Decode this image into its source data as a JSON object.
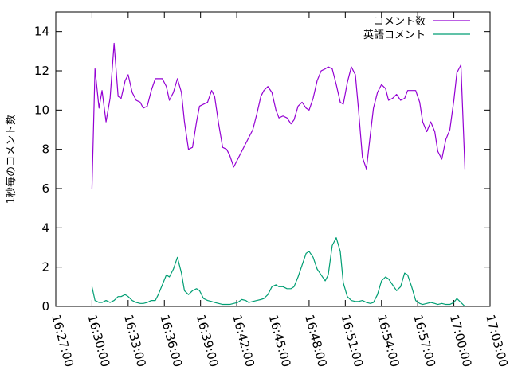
{
  "chart_data": {
    "type": "line",
    "title": "",
    "xlabel": "",
    "ylabel": "1秒毎のコメント数",
    "xlim": [
      "16:27:00",
      "17:03:00"
    ],
    "ylim": [
      0,
      15
    ],
    "x_ticks": [
      "16:27:00",
      "16:30:00",
      "16:33:00",
      "16:36:00",
      "16:39:00",
      "16:42:00",
      "16:45:00",
      "16:48:00",
      "16:51:00",
      "16:54:00",
      "16:57:00",
      "17:00:00",
      "17:03:00"
    ],
    "y_ticks": [
      0,
      2,
      4,
      6,
      8,
      10,
      12,
      14
    ],
    "grid": false,
    "legend_position": "top-right",
    "series": [
      {
        "name": "コメント数",
        "color": "#9400d3",
        "points": [
          [
            "16:30:00",
            6.0
          ],
          [
            "16:30:15",
            12.1
          ],
          [
            "16:30:35",
            10.1
          ],
          [
            "16:30:50",
            11.0
          ],
          [
            "16:31:10",
            9.4
          ],
          [
            "16:31:30",
            10.6
          ],
          [
            "16:31:50",
            13.4
          ],
          [
            "16:32:10",
            10.7
          ],
          [
            "16:32:25",
            10.6
          ],
          [
            "16:32:45",
            11.5
          ],
          [
            "16:33:00",
            11.8
          ],
          [
            "16:33:20",
            10.9
          ],
          [
            "16:33:40",
            10.5
          ],
          [
            "16:34:00",
            10.4
          ],
          [
            "16:34:15",
            10.1
          ],
          [
            "16:34:35",
            10.2
          ],
          [
            "16:34:55",
            11.0
          ],
          [
            "16:35:15",
            11.6
          ],
          [
            "16:35:30",
            11.6
          ],
          [
            "16:35:50",
            11.6
          ],
          [
            "16:36:10",
            11.2
          ],
          [
            "16:36:25",
            10.5
          ],
          [
            "16:36:45",
            10.9
          ],
          [
            "16:37:05",
            11.6
          ],
          [
            "16:37:25",
            10.9
          ],
          [
            "16:37:40",
            9.4
          ],
          [
            "16:38:00",
            8.0
          ],
          [
            "16:38:20",
            8.1
          ],
          [
            "16:38:40",
            9.4
          ],
          [
            "16:38:55",
            10.2
          ],
          [
            "16:39:15",
            10.3
          ],
          [
            "16:39:35",
            10.4
          ],
          [
            "16:39:55",
            11.0
          ],
          [
            "16:40:10",
            10.7
          ],
          [
            "16:40:30",
            9.3
          ],
          [
            "16:40:50",
            8.1
          ],
          [
            "16:41:10",
            8.0
          ],
          [
            "16:41:25",
            7.7
          ],
          [
            "16:41:45",
            7.1
          ],
          [
            "16:42:05",
            7.5
          ],
          [
            "16:42:25",
            7.9
          ],
          [
            "16:42:45",
            8.3
          ],
          [
            "16:43:00",
            8.6
          ],
          [
            "16:43:20",
            9.0
          ],
          [
            "16:43:40",
            9.8
          ],
          [
            "16:44:00",
            10.7
          ],
          [
            "16:44:15",
            11.0
          ],
          [
            "16:44:35",
            11.2
          ],
          [
            "16:44:55",
            10.9
          ],
          [
            "16:45:15",
            10.0
          ],
          [
            "16:45:30",
            9.6
          ],
          [
            "16:45:50",
            9.7
          ],
          [
            "16:46:10",
            9.6
          ],
          [
            "16:46:30",
            9.3
          ],
          [
            "16:46:45",
            9.5
          ],
          [
            "16:47:05",
            10.2
          ],
          [
            "16:47:25",
            10.4
          ],
          [
            "16:47:45",
            10.1
          ],
          [
            "16:48:00",
            10.0
          ],
          [
            "16:48:20",
            10.6
          ],
          [
            "16:48:40",
            11.5
          ],
          [
            "16:49:00",
            12.0
          ],
          [
            "16:49:20",
            12.1
          ],
          [
            "16:49:35",
            12.2
          ],
          [
            "16:49:55",
            12.1
          ],
          [
            "16:50:15",
            11.3
          ],
          [
            "16:50:35",
            10.4
          ],
          [
            "16:50:50",
            10.3
          ],
          [
            "16:51:10",
            11.4
          ],
          [
            "16:51:30",
            12.2
          ],
          [
            "16:51:50",
            11.8
          ],
          [
            "16:52:05",
            10.1
          ],
          [
            "16:52:25",
            7.6
          ],
          [
            "16:52:45",
            7.0
          ],
          [
            "16:53:05",
            8.8
          ],
          [
            "16:53:20",
            10.1
          ],
          [
            "16:53:40",
            10.9
          ],
          [
            "16:54:00",
            11.3
          ],
          [
            "16:54:20",
            11.1
          ],
          [
            "16:54:35",
            10.5
          ],
          [
            "16:54:55",
            10.6
          ],
          [
            "16:55:15",
            10.8
          ],
          [
            "16:55:35",
            10.5
          ],
          [
            "16:55:55",
            10.6
          ],
          [
            "16:56:10",
            11.0
          ],
          [
            "16:56:30",
            11.0
          ],
          [
            "16:56:50",
            11.0
          ],
          [
            "16:57:10",
            10.4
          ],
          [
            "16:57:25",
            9.4
          ],
          [
            "16:57:45",
            8.9
          ],
          [
            "16:58:05",
            9.4
          ],
          [
            "16:58:25",
            8.9
          ],
          [
            "16:58:40",
            7.9
          ],
          [
            "16:59:00",
            7.5
          ],
          [
            "16:59:20",
            8.5
          ],
          [
            "16:59:40",
            9.0
          ],
          [
            "17:00:00",
            10.5
          ],
          [
            "17:00:15",
            11.9
          ],
          [
            "17:00:35",
            12.3
          ],
          [
            "17:00:55",
            7.0
          ]
        ]
      },
      {
        "name": "英語コメント",
        "color": "#009e73",
        "points": [
          [
            "16:30:00",
            1.0
          ],
          [
            "16:30:15",
            0.3
          ],
          [
            "16:30:35",
            0.2
          ],
          [
            "16:30:50",
            0.2
          ],
          [
            "16:31:10",
            0.3
          ],
          [
            "16:31:30",
            0.2
          ],
          [
            "16:31:50",
            0.3
          ],
          [
            "16:32:10",
            0.5
          ],
          [
            "16:32:25",
            0.5
          ],
          [
            "16:32:45",
            0.6
          ],
          [
            "16:33:00",
            0.5
          ],
          [
            "16:33:20",
            0.3
          ],
          [
            "16:33:40",
            0.2
          ],
          [
            "16:34:00",
            0.15
          ],
          [
            "16:34:15",
            0.15
          ],
          [
            "16:34:35",
            0.2
          ],
          [
            "16:34:55",
            0.3
          ],
          [
            "16:35:15",
            0.3
          ],
          [
            "16:35:30",
            0.6
          ],
          [
            "16:35:50",
            1.1
          ],
          [
            "16:36:10",
            1.6
          ],
          [
            "16:36:25",
            1.5
          ],
          [
            "16:36:45",
            1.9
          ],
          [
            "16:37:05",
            2.5
          ],
          [
            "16:37:25",
            1.7
          ],
          [
            "16:37:40",
            0.8
          ],
          [
            "16:38:00",
            0.6
          ],
          [
            "16:38:20",
            0.8
          ],
          [
            "16:38:40",
            0.9
          ],
          [
            "16:38:55",
            0.8
          ],
          [
            "16:39:15",
            0.4
          ],
          [
            "16:39:35",
            0.3
          ],
          [
            "16:39:55",
            0.25
          ],
          [
            "16:40:10",
            0.2
          ],
          [
            "16:40:30",
            0.15
          ],
          [
            "16:40:50",
            0.1
          ],
          [
            "16:41:10",
            0.1
          ],
          [
            "16:41:25",
            0.1
          ],
          [
            "16:41:45",
            0.15
          ],
          [
            "16:42:05",
            0.2
          ],
          [
            "16:42:25",
            0.35
          ],
          [
            "16:42:45",
            0.3
          ],
          [
            "16:43:00",
            0.2
          ],
          [
            "16:43:20",
            0.25
          ],
          [
            "16:43:40",
            0.3
          ],
          [
            "16:44:00",
            0.35
          ],
          [
            "16:44:15",
            0.4
          ],
          [
            "16:44:35",
            0.6
          ],
          [
            "16:44:55",
            1.0
          ],
          [
            "16:45:15",
            1.1
          ],
          [
            "16:45:30",
            1.0
          ],
          [
            "16:45:50",
            1.0
          ],
          [
            "16:46:10",
            0.9
          ],
          [
            "16:46:30",
            0.9
          ],
          [
            "16:46:45",
            1.0
          ],
          [
            "16:47:05",
            1.5
          ],
          [
            "16:47:25",
            2.1
          ],
          [
            "16:47:45",
            2.7
          ],
          [
            "16:48:00",
            2.8
          ],
          [
            "16:48:20",
            2.5
          ],
          [
            "16:48:40",
            1.9
          ],
          [
            "16:49:00",
            1.6
          ],
          [
            "16:49:20",
            1.3
          ],
          [
            "16:49:35",
            1.6
          ],
          [
            "16:49:55",
            3.1
          ],
          [
            "16:50:15",
            3.5
          ],
          [
            "16:50:35",
            2.8
          ],
          [
            "16:50:50",
            1.2
          ],
          [
            "16:51:10",
            0.5
          ],
          [
            "16:51:30",
            0.3
          ],
          [
            "16:51:50",
            0.25
          ],
          [
            "16:52:05",
            0.25
          ],
          [
            "16:52:25",
            0.3
          ],
          [
            "16:52:45",
            0.2
          ],
          [
            "16:53:05",
            0.15
          ],
          [
            "16:53:20",
            0.2
          ],
          [
            "16:53:40",
            0.6
          ],
          [
            "16:54:00",
            1.3
          ],
          [
            "16:54:20",
            1.5
          ],
          [
            "16:54:35",
            1.4
          ],
          [
            "16:54:55",
            1.1
          ],
          [
            "16:55:15",
            0.8
          ],
          [
            "16:55:35",
            1.0
          ],
          [
            "16:55:55",
            1.7
          ],
          [
            "16:56:10",
            1.6
          ],
          [
            "16:56:30",
            1.0
          ],
          [
            "16:56:50",
            0.3
          ],
          [
            "16:57:10",
            0.15
          ],
          [
            "16:57:25",
            0.1
          ],
          [
            "16:57:45",
            0.15
          ],
          [
            "16:58:05",
            0.2
          ],
          [
            "16:58:25",
            0.15
          ],
          [
            "16:58:40",
            0.1
          ],
          [
            "16:59:00",
            0.15
          ],
          [
            "16:59:20",
            0.1
          ],
          [
            "16:59:40",
            0.1
          ],
          [
            "17:00:00",
            0.2
          ],
          [
            "17:00:15",
            0.4
          ],
          [
            "17:00:35",
            0.2
          ],
          [
            "17:00:55",
            0.0
          ]
        ]
      }
    ]
  }
}
